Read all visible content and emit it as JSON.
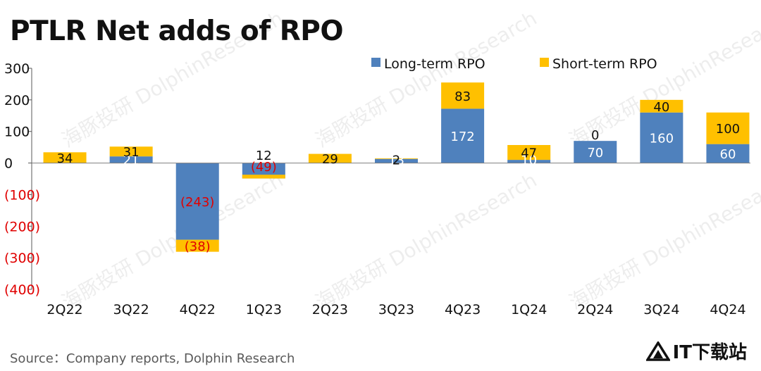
{
  "chart_data": {
    "type": "bar",
    "stacked": true,
    "title": "PTLR Net adds of RPO",
    "source": "Source：Company reports, Dolphin Research",
    "categories": [
      "2Q22",
      "3Q22",
      "4Q22",
      "1Q23",
      "2Q23",
      "3Q23",
      "4Q23",
      "1Q24",
      "2Q24",
      "3Q24",
      "4Q24"
    ],
    "series": [
      {
        "name": "Long-term RPO",
        "color": "#4F81BD",
        "values": [
          0,
          21,
          -243,
          -49,
          0,
          13,
          172,
          10,
          70,
          160,
          60
        ],
        "labels": [
          "",
          "21",
          "(243)",
          "(49)",
          "",
          "13",
          "172",
          "10",
          "70",
          "160",
          "60"
        ]
      },
      {
        "name": "Short-term RPO",
        "color": "#FFC000",
        "values": [
          34,
          31,
          -38,
          12,
          29,
          2,
          83,
          47,
          0,
          40,
          100
        ],
        "labels": [
          "34",
          "31",
          "(38)",
          "12",
          "29",
          "2",
          "83",
          "47",
          "0",
          "40",
          "100"
        ]
      }
    ],
    "ylim": [
      -400,
      300
    ],
    "yticks": [
      300,
      200,
      100,
      0,
      -100,
      -200,
      -300,
      -400
    ],
    "ytick_labels": [
      "300",
      "200",
      "100",
      "0",
      "(100)",
      "(200)",
      "(300)",
      "(400)"
    ],
    "negative_label_color": "#E00000",
    "legend_position": "top-right",
    "grid": false,
    "xlabel": "",
    "ylabel": ""
  },
  "watermark": "海豚投研 DolphinResearch",
  "brand": {
    "text": "IT下载站",
    "icon": "triangle-logo-icon"
  }
}
